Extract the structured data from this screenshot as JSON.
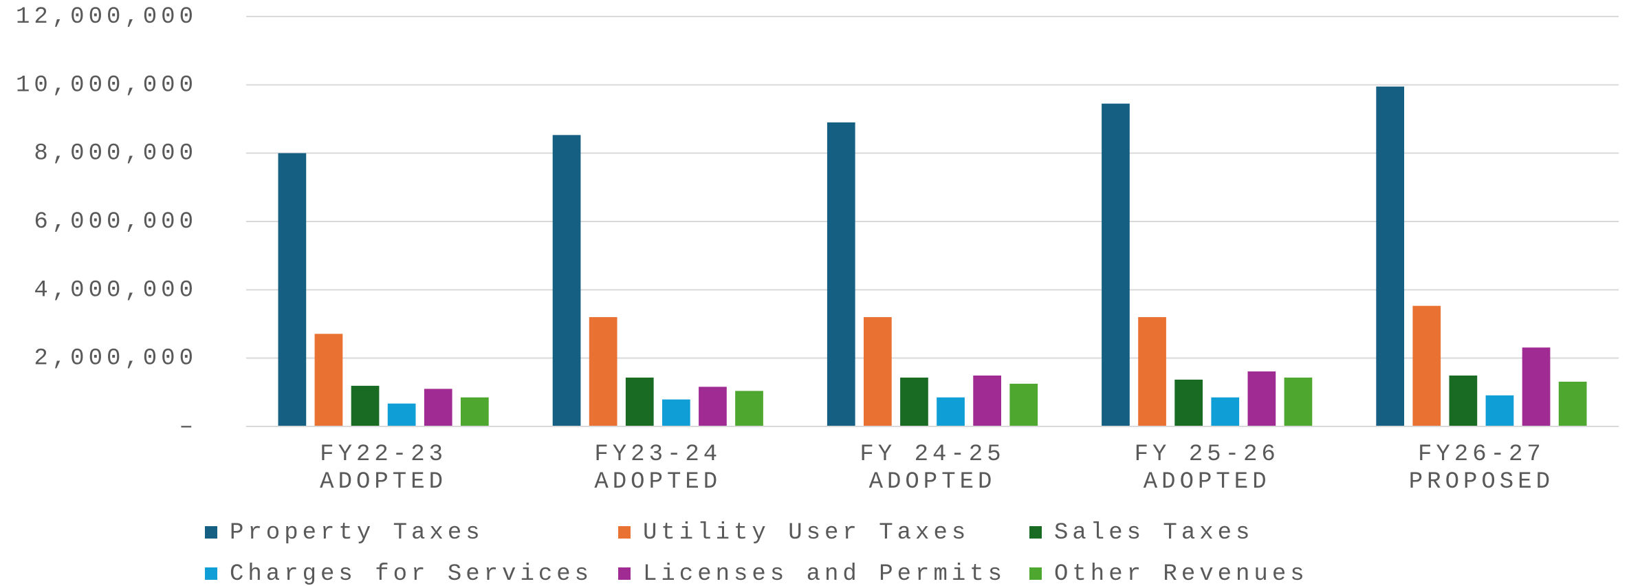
{
  "chart_data": {
    "type": "bar",
    "categories": [
      "FY22-23 ADOPTED",
      "FY23-24 ADOPTED",
      "FY 24-25 ADOPTED",
      "FY 25-26 ADOPTED",
      "FY26-27 PROPOSED"
    ],
    "series": [
      {
        "name": "Property Taxes",
        "color": "#155f83",
        "values": [
          8000000,
          8530000,
          8900000,
          9450000,
          9950000
        ]
      },
      {
        "name": "Utility User Taxes",
        "color": "#e97132",
        "values": [
          2710000,
          3200000,
          3200000,
          3200000,
          3530000
        ]
      },
      {
        "name": "Sales Taxes",
        "color": "#196b24",
        "values": [
          1190000,
          1430000,
          1430000,
          1370000,
          1490000
        ]
      },
      {
        "name": "Charges for Services",
        "color": "#0f9ed5",
        "values": [
          670000,
          790000,
          850000,
          850000,
          910000
        ]
      },
      {
        "name": "Licenses and Permits",
        "color": "#a02b93",
        "values": [
          1100000,
          1160000,
          1490000,
          1610000,
          2310000
        ]
      },
      {
        "name": "Other Revenues",
        "color": "#4ea72e",
        "values": [
          850000,
          1040000,
          1250000,
          1430000,
          1310000
        ]
      }
    ],
    "ylim": [
      0,
      12000000
    ],
    "yticks": [
      {
        "value": 0,
        "label": "–"
      },
      {
        "value": 2000000,
        "label": "2,000,000"
      },
      {
        "value": 4000000,
        "label": "4,000,000"
      },
      {
        "value": 6000000,
        "label": "6,000,000"
      },
      {
        "value": 8000000,
        "label": "8,000,000"
      },
      {
        "value": 10000000,
        "label": "10,000,000"
      },
      {
        "value": 12000000,
        "label": "12,000,000"
      }
    ],
    "grid": true
  }
}
